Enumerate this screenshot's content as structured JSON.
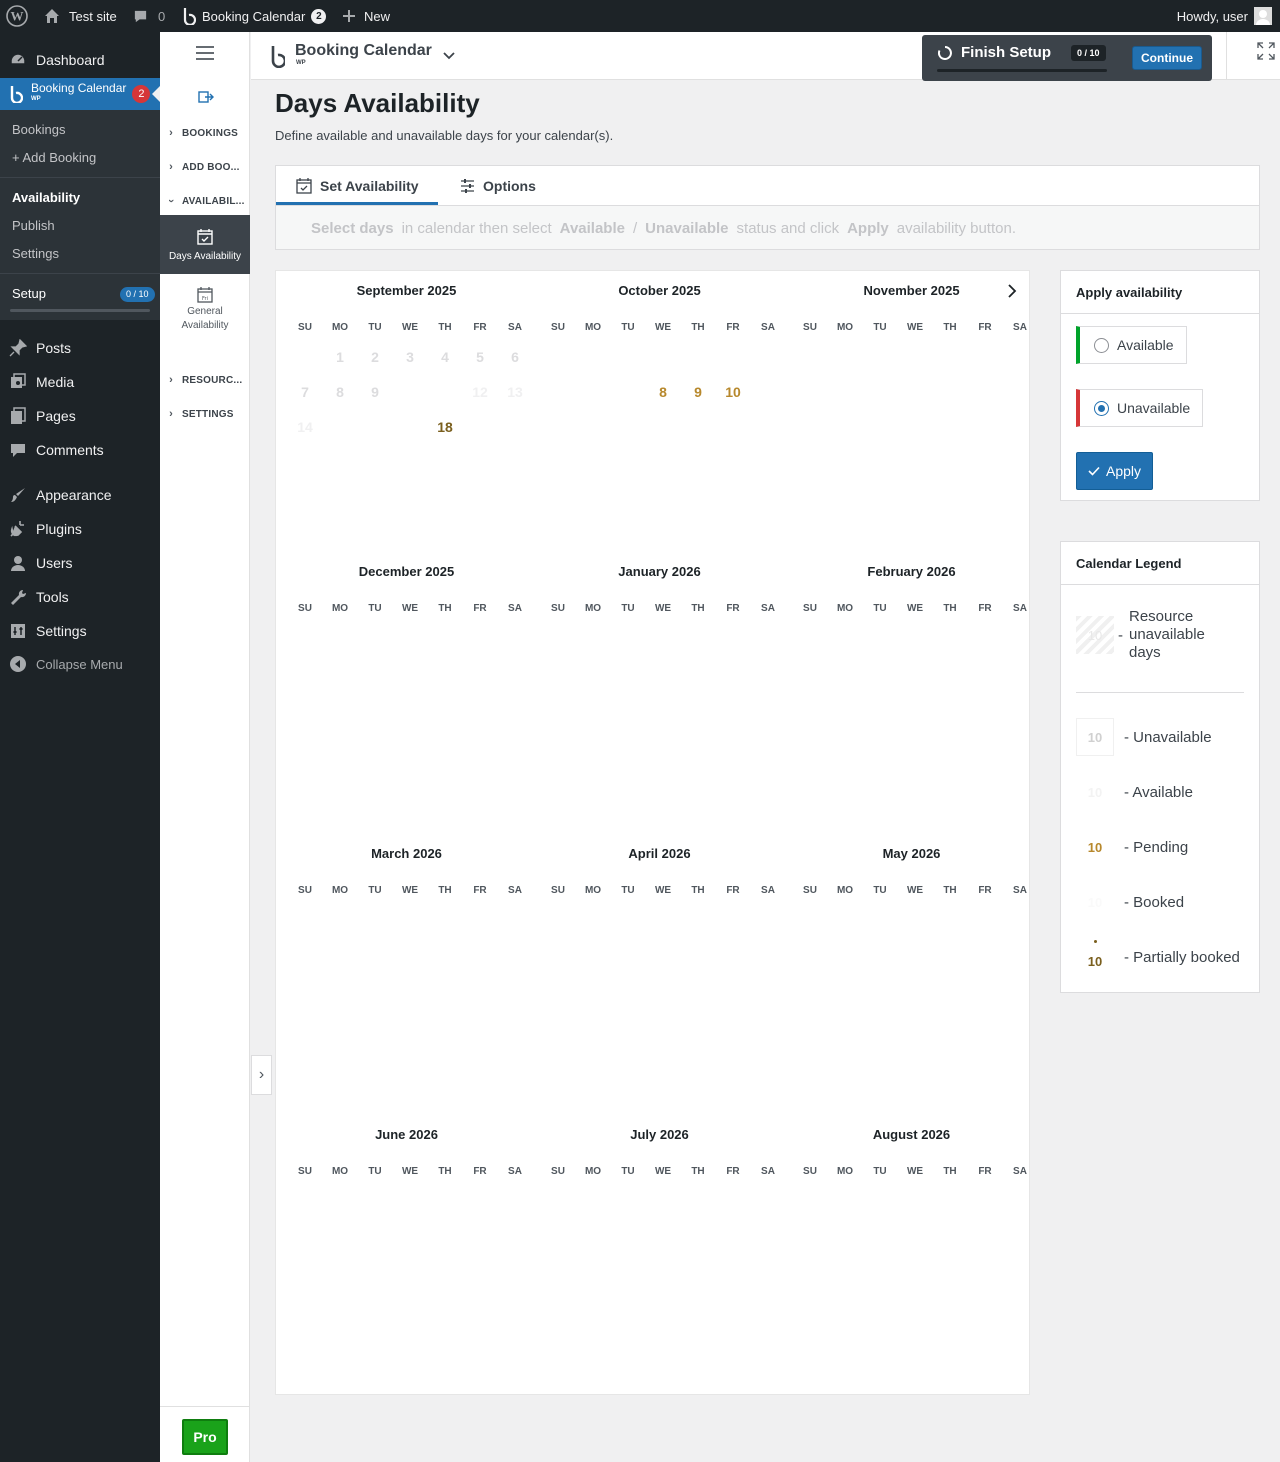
{
  "adminbar": {
    "site_name": "Test site",
    "comments_count": "0",
    "plugin_name": "Booking Calendar",
    "plugin_badge": "2",
    "new_label": "New",
    "howdy": "Howdy, user"
  },
  "wpmenu": {
    "dashboard": "Dashboard",
    "booking_calendar": "Booking Calendar",
    "booking_calendar_sub": "WP",
    "booking_badge": "2",
    "sub_bookings": "Bookings",
    "sub_add_booking": "+ Add Booking",
    "sub_availability": "Availability",
    "sub_publish": "Publish",
    "sub_settings": "Settings",
    "sub_setup": "Setup",
    "setup_badge": "0 / 10",
    "posts": "Posts",
    "media": "Media",
    "pages": "Pages",
    "comments": "Comments",
    "appearance": "Appearance",
    "plugins": "Plugins",
    "users": "Users",
    "tools": "Tools",
    "settings": "Settings",
    "collapse": "Collapse Menu"
  },
  "plugnav": {
    "bookings": "BOOKINGS",
    "add_booking": "ADD BOO...",
    "availability": "AVAILABIL...",
    "days_availability": "Days Availability",
    "general_availability_1": "General",
    "general_availability_2": "Availability",
    "resources": "RESOURC...",
    "settings": "SETTINGS",
    "pro": "Pro"
  },
  "topbar": {
    "title": "Booking Calendar",
    "sub": "WP"
  },
  "setup": {
    "title": "Finish Setup",
    "progress": "0 / 10",
    "progress_fraction": 0.0,
    "continue": "Continue"
  },
  "page": {
    "title": "Days Availability",
    "description": "Define available and unavailable days for your calendar(s)."
  },
  "tabs": {
    "set_availability": "Set Availability",
    "options": "Options"
  },
  "hint": {
    "select_days": "Select days",
    "in_calendar": "in calendar then select",
    "available": "Available",
    "slash": "/",
    "unavailable": "Unavailable",
    "status_click": "status and click",
    "apply": "Apply",
    "availability_button": "availability button."
  },
  "calendar": {
    "dow": [
      "SU",
      "MO",
      "TU",
      "WE",
      "TH",
      "FR",
      "SA"
    ],
    "months": [
      {
        "title": "September 2025",
        "days": [
          {
            "d": "1",
            "c": "past",
            "col": 1,
            "row": 0
          },
          {
            "d": "2",
            "c": "past",
            "col": 2,
            "row": 0
          },
          {
            "d": "3",
            "c": "past",
            "col": 3,
            "row": 0
          },
          {
            "d": "4",
            "c": "past",
            "col": 4,
            "row": 0
          },
          {
            "d": "5",
            "c": "past",
            "col": 5,
            "row": 0
          },
          {
            "d": "6",
            "c": "past",
            "col": 6,
            "row": 0
          },
          {
            "d": "7",
            "c": "past",
            "col": 0,
            "row": 1
          },
          {
            "d": "8",
            "c": "past",
            "col": 1,
            "row": 1
          },
          {
            "d": "9",
            "c": "past",
            "col": 2,
            "row": 1
          },
          {
            "d": "12",
            "c": "faint",
            "col": 5,
            "row": 1
          },
          {
            "d": "13",
            "c": "faint",
            "col": 6,
            "row": 1
          },
          {
            "d": "14",
            "c": "faint",
            "col": 0,
            "row": 2
          },
          {
            "d": "18",
            "c": "partial",
            "col": 4,
            "row": 2
          }
        ]
      },
      {
        "title": "October 2025",
        "days": [
          {
            "d": "8",
            "c": "pending",
            "col": 3,
            "row": 1
          },
          {
            "d": "9",
            "c": "pending",
            "col": 4,
            "row": 1
          },
          {
            "d": "10",
            "c": "pending",
            "col": 5,
            "row": 1
          }
        ]
      },
      {
        "title": "November 2025",
        "days": []
      },
      {
        "title": "December 2025",
        "days": []
      },
      {
        "title": "January 2026",
        "days": []
      },
      {
        "title": "February 2026",
        "days": []
      },
      {
        "title": "March 2026",
        "days": []
      },
      {
        "title": "April 2026",
        "days": []
      },
      {
        "title": "May 2026",
        "days": []
      },
      {
        "title": "June 2026",
        "days": []
      },
      {
        "title": "July 2026",
        "days": []
      },
      {
        "title": "August 2026",
        "days": []
      }
    ]
  },
  "apply_panel": {
    "title": "Apply availability",
    "available": "Available",
    "unavailable": "Unavailable",
    "apply": "Apply",
    "selected": "unavailable"
  },
  "legend": {
    "title": "Calendar Legend",
    "resource_unavailable_1": "Resource",
    "resource_unavailable_2": "unavailable",
    "resource_unavailable_3": "days",
    "sample": "10",
    "unavailable": "- Unavailable",
    "available": "- Available",
    "pending": "- Pending",
    "booked": "- Booked",
    "partially_booked": "- Partially booked",
    "dash": "-"
  },
  "colors": {
    "accent": "#2271b1",
    "pending": "#b7882c",
    "partial": "#7a5f1e",
    "available_bar": "#00a32a",
    "unavailable_bar": "#d63638",
    "pro": "#1aa21a"
  }
}
